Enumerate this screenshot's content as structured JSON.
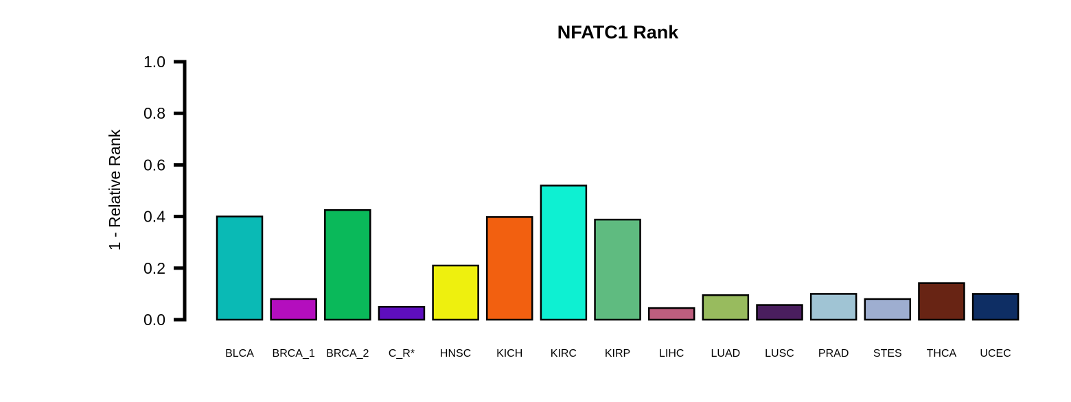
{
  "chart_data": {
    "type": "bar",
    "title": "NFATC1 Rank",
    "xlabel": "",
    "ylabel": "1 - Relative Rank",
    "ylim": [
      0,
      1
    ],
    "yticks": [
      "0.0",
      "0.2",
      "0.4",
      "0.6",
      "0.8",
      "1.0"
    ],
    "ytick_values": [
      0,
      0.2,
      0.4,
      0.6,
      0.8,
      1.0
    ],
    "grid": false,
    "categories": [
      "BLCA",
      "BRCA_1",
      "BRCA_2",
      "C_R*",
      "HNSC",
      "KICH",
      "KIRC",
      "KIRP",
      "LIHC",
      "LUAD",
      "LUSC",
      "PRAD",
      "STES",
      "THCA",
      "UCEC"
    ],
    "values": [
      0.4,
      0.08,
      0.425,
      0.05,
      0.21,
      0.398,
      0.52,
      0.388,
      0.045,
      0.095,
      0.057,
      0.1,
      0.08,
      0.142,
      0.1
    ],
    "colors": [
      "#0ABAB5",
      "#B40EBE",
      "#0AB95A",
      "#5E0EBE",
      "#EEF00E",
      "#F26010",
      "#0EF0D2",
      "#5FBB80",
      "#BE5E7E",
      "#98BB5E",
      "#4A1E5E",
      "#A0C4D4",
      "#9EAED0",
      "#682414",
      "#0E2E64"
    ]
  }
}
